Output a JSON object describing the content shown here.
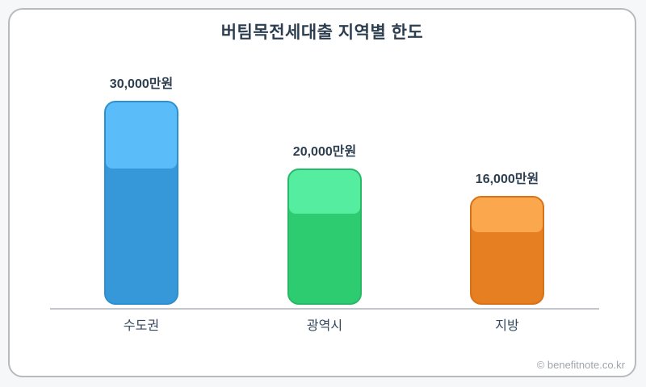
{
  "page": {
    "watermark": "© benefitnote.co.kr"
  },
  "colors": {
    "page_background": "#f6f7f9",
    "card_background": "#ffffff",
    "card_border": "#b6bbc0",
    "axis_line": "#c2c5c9",
    "text_dark": "#2c3e50",
    "watermark_gray": "#9fa5ab"
  },
  "chart_data": {
    "type": "bar",
    "title": "버팀목전세대출 지역별 한도",
    "categories": [
      "수도권",
      "광역시",
      "지방"
    ],
    "values": [
      30000,
      20000,
      16000
    ],
    "value_labels": [
      "30,000만원",
      "20,000만원",
      "16,000만원"
    ],
    "unit": "만원",
    "xlabel": "",
    "ylabel": "",
    "ylim": [
      0,
      30000
    ],
    "grid": false,
    "legend": "none",
    "bar_colors": [
      {
        "top": "#5bbcfa",
        "bottom": "#3697d9",
        "border": "#2e8fce"
      },
      {
        "top": "#55eda0",
        "bottom": "#2ecc71",
        "border": "#29b865"
      },
      {
        "top": "#fba74d",
        "bottom": "#e67e22",
        "border": "#d8731a"
      }
    ]
  }
}
